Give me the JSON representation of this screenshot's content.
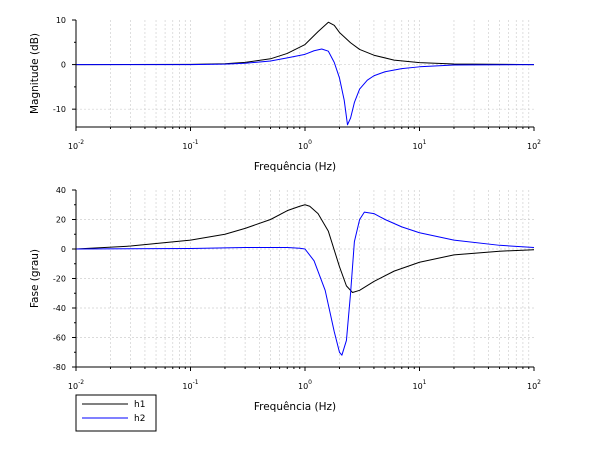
{
  "legend": {
    "entries": [
      {
        "name": "h1",
        "color": "#000000"
      },
      {
        "name": "h2",
        "color": "#0000ff"
      }
    ],
    "placement": "bottom-left"
  },
  "chart_data": [
    {
      "type": "line",
      "xscale": "log",
      "xlabel": "Frequência (Hz)",
      "ylabel": "Magnitude (dB)",
      "xlim": [
        0.01,
        100
      ],
      "ylim": [
        -14,
        10
      ],
      "xticks": [
        0.01,
        0.1,
        1,
        10,
        100
      ],
      "yticks": [
        {
          "value": 10,
          "label": "10"
        },
        {
          "value": 0,
          "label": "0"
        },
        {
          "value": -10,
          "label": "-10"
        }
      ],
      "grid": true,
      "series": [
        {
          "name": "h1",
          "color": "#000000",
          "x": [
            0.01,
            0.1,
            0.2,
            0.3,
            0.5,
            0.7,
            1.0,
            1.3,
            1.6,
            1.8,
            2.0,
            2.5,
            3.0,
            4.0,
            6.0,
            10.0,
            20.0,
            100.0
          ],
          "y": [
            0,
            0.05,
            0.2,
            0.5,
            1.3,
            2.5,
            4.5,
            7.4,
            9.5,
            8.8,
            7.2,
            4.9,
            3.4,
            2.1,
            1.0,
            0.45,
            0.12,
            0
          ]
        },
        {
          "name": "h2",
          "color": "#0000ff",
          "x": [
            0.01,
            0.1,
            0.2,
            0.3,
            0.5,
            0.7,
            1.0,
            1.2,
            1.4,
            1.6,
            1.8,
            2.0,
            2.2,
            2.35,
            2.5,
            2.7,
            3.0,
            3.5,
            4.0,
            5.0,
            7.0,
            10.0,
            20.0,
            100.0
          ],
          "y": [
            0,
            0,
            0.1,
            0.3,
            0.8,
            1.5,
            2.3,
            3.1,
            3.5,
            3.0,
            0.5,
            -3.0,
            -8.0,
            -13.5,
            -12.0,
            -8.5,
            -5.5,
            -3.5,
            -2.5,
            -1.6,
            -0.9,
            -0.5,
            -0.1,
            0
          ]
        }
      ]
    },
    {
      "type": "line",
      "xscale": "log",
      "xlabel": "Frequência (Hz)",
      "ylabel": "Fase (grau)",
      "xlim": [
        0.01,
        100
      ],
      "ylim": [
        -80,
        40
      ],
      "xticks": [
        0.01,
        0.1,
        1,
        10,
        100
      ],
      "yticks": [
        {
          "value": 40,
          "label": "40"
        },
        {
          "value": 20,
          "label": "20"
        },
        {
          "value": 0,
          "label": "0"
        },
        {
          "value": -20,
          "label": "-20"
        },
        {
          "value": -40,
          "label": "-40"
        },
        {
          "value": -60,
          "label": "-60"
        },
        {
          "value": -80,
          "label": "-80"
        }
      ],
      "grid": true,
      "series": [
        {
          "name": "h1",
          "color": "#000000",
          "x": [
            0.01,
            0.03,
            0.1,
            0.2,
            0.3,
            0.5,
            0.7,
            0.9,
            1.0,
            1.1,
            1.3,
            1.6,
            2.0,
            2.3,
            2.6,
            3.0,
            4.0,
            6.0,
            10.0,
            20.0,
            50.0,
            100.0
          ],
          "y": [
            0,
            2,
            6,
            10,
            14,
            20,
            26,
            29,
            30,
            29,
            24,
            12,
            -12,
            -25,
            -29.5,
            -28,
            -22,
            -15,
            -9,
            -4,
            -1.5,
            -0.5
          ]
        },
        {
          "name": "h2",
          "color": "#0000ff",
          "x": [
            0.01,
            0.1,
            0.3,
            0.5,
            0.7,
            0.9,
            1.0,
            1.2,
            1.5,
            1.8,
            2.0,
            2.1,
            2.3,
            2.5,
            2.7,
            3.0,
            3.3,
            4.0,
            5.0,
            7.0,
            10.0,
            20.0,
            50.0,
            100.0
          ],
          "y": [
            0,
            0.3,
            1,
            1,
            1,
            0.5,
            0,
            -8,
            -28,
            -56,
            -70,
            -72,
            -62,
            -30,
            5,
            20,
            25,
            24,
            20,
            15,
            11,
            6,
            2.5,
            1
          ]
        }
      ]
    }
  ]
}
